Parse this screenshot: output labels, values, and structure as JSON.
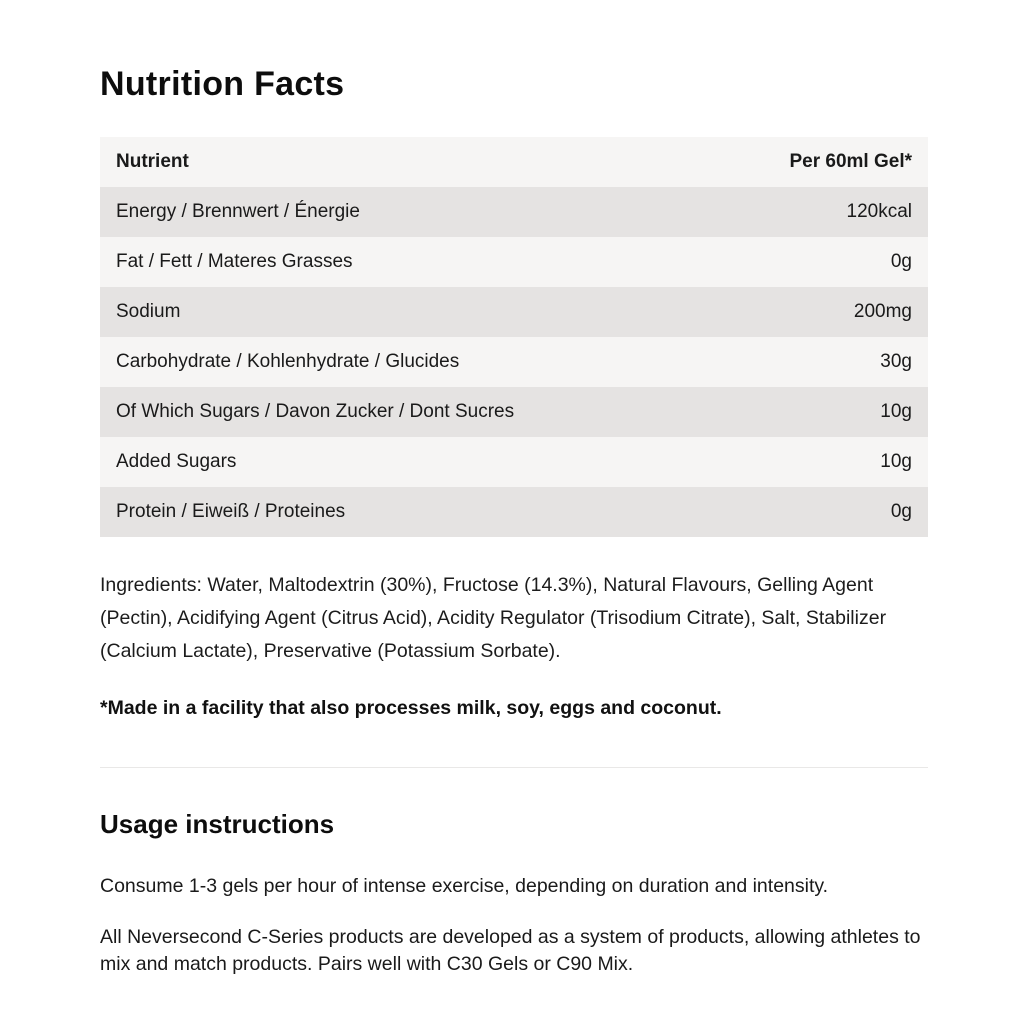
{
  "title": "Nutrition Facts",
  "table": {
    "columns": [
      "Nutrient",
      "Per 60ml Gel*"
    ],
    "rows": [
      {
        "label": "Energy / Brennwert / Énergie",
        "value": "120kcal"
      },
      {
        "label": "Fat / Fett / Materes Grasses",
        "value": "0g"
      },
      {
        "label": "Sodium",
        "value": "200mg"
      },
      {
        "label": "Carbohydrate / Kohlenhydrate / Glucides",
        "value": "30g"
      },
      {
        "label": "Of Which Sugars / Davon Zucker / Dont Sucres",
        "value": "10g"
      },
      {
        "label": "Added Sugars",
        "value": "10g"
      },
      {
        "label": "Protein / Eiweiß / Proteines",
        "value": "0g"
      }
    ]
  },
  "ingredients": "Ingredients: Water, Maltodextrin (30%), Fructose (14.3%), Natural Flavours, Gelling Agent (Pectin), Acidifying Agent (Citrus Acid), Acidity Regulator (Trisodium Citrate), Salt, Stabilizer (Calcium Lactate), Preservative (Potassium Sorbate).",
  "allergen_note": "*Made in a facility that also processes milk, soy, eggs and coconut.",
  "usage": {
    "heading": "Usage instructions",
    "paragraphs": [
      "Consume 1-3 gels per hour of intense exercise, depending on duration and intensity.",
      "All Neversecond C-Series products are developed as a system of products, allowing athletes to mix and match products. Pairs well with C30 Gels or C90 Mix."
    ]
  },
  "colors": {
    "row_dark": "#e5e3e2",
    "row_light": "#f6f5f4",
    "divider": "#e9e8e7",
    "text": "#1a1a1a"
  }
}
